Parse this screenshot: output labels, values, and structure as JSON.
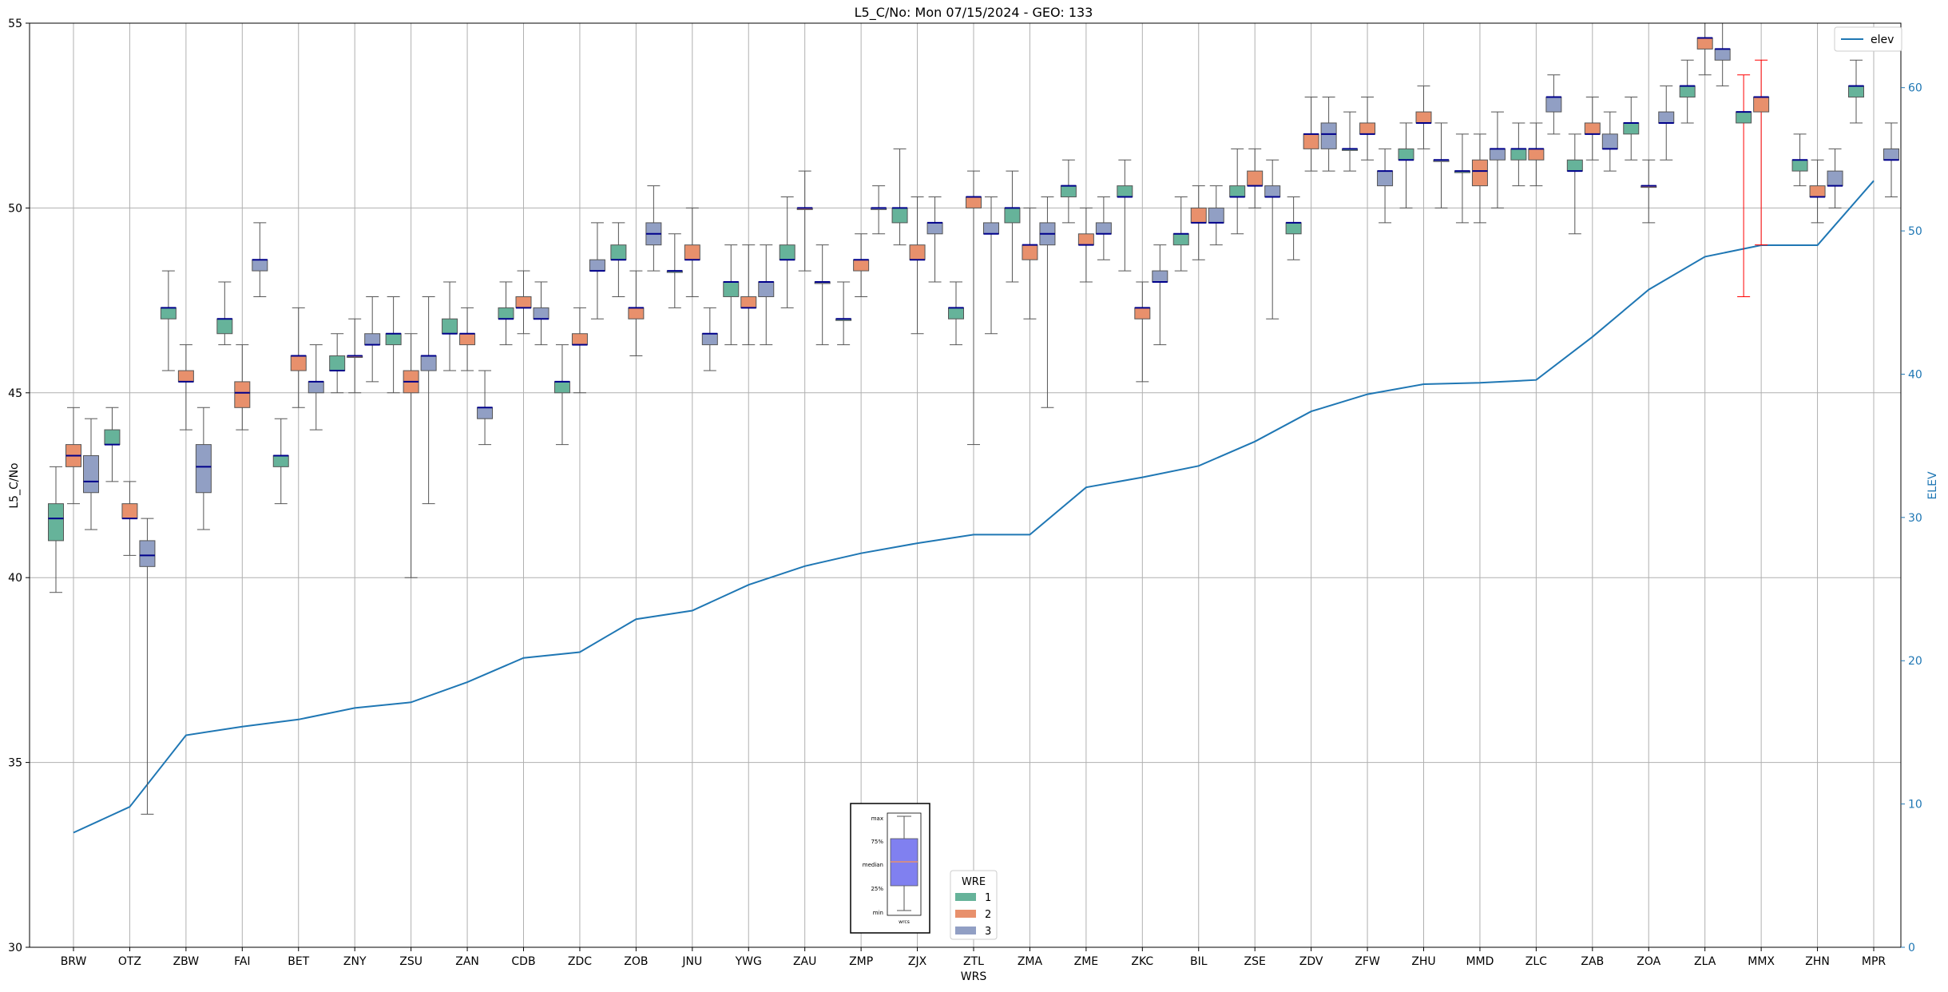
{
  "chart_data": {
    "type": "boxplot",
    "title": "L5_C/No: Mon 07/15/2024 - GEO: 133",
    "xlabel": "WRS",
    "ylabel": "L5_C/No",
    "y2label": "ELEV",
    "ylim": [
      30,
      55
    ],
    "y2lim": [
      0,
      64.5
    ],
    "yticks": [
      30,
      35,
      40,
      45,
      50,
      55
    ],
    "y2ticks": [
      0,
      10,
      20,
      30,
      40,
      50,
      60
    ],
    "grid": true,
    "categories": [
      "BRW",
      "OTZ",
      "ZBW",
      "FAI",
      "BET",
      "ZNY",
      "ZSU",
      "ZAN",
      "CDB",
      "ZDC",
      "ZOB",
      "JNU",
      "YWG",
      "ZAU",
      "ZMP",
      "ZJX",
      "ZTL",
      "ZMA",
      "ZME",
      "ZKC",
      "BIL",
      "ZSE",
      "ZDV",
      "ZFW",
      "ZHU",
      "MMD",
      "ZLC",
      "ZAB",
      "ZOA",
      "ZLA",
      "MMX",
      "ZHN",
      "MPR"
    ],
    "wre_colors": {
      "1": "#66b39a",
      "2": "#e8906c",
      "3": "#919fc4"
    },
    "median_color": "#00008b",
    "whisker_color": "#555555",
    "outlier_whisker_color": "#ff0000",
    "line_color": "#1f77b4",
    "legend_wre": {
      "title": "WRE",
      "entries": [
        "1",
        "2",
        "3"
      ],
      "position": "bottom-center"
    },
    "legend_elev": {
      "label": "elev",
      "position": "top-right"
    },
    "key_box": {
      "labels": [
        "max",
        "75%",
        "median",
        "25%",
        "min"
      ],
      "caption": "wrcs",
      "position": "bottom-center"
    },
    "boxes": [
      {
        "wrs": "BRW",
        "wre": 1,
        "min": 39.6,
        "q1": 41.0,
        "median": 41.6,
        "q3": 42.0,
        "max": 43.0
      },
      {
        "wrs": "BRW",
        "wre": 2,
        "min": 42.0,
        "q1": 43.0,
        "median": 43.3,
        "q3": 43.6,
        "max": 44.6
      },
      {
        "wrs": "BRW",
        "wre": 3,
        "min": 41.3,
        "q1": 42.3,
        "median": 42.6,
        "q3": 43.3,
        "max": 44.3
      },
      {
        "wrs": "OTZ",
        "wre": 1,
        "min": 42.6,
        "q1": 43.6,
        "median": 43.6,
        "q3": 44.0,
        "max": 44.6
      },
      {
        "wrs": "OTZ",
        "wre": 2,
        "min": 40.6,
        "q1": 41.6,
        "median": 41.6,
        "q3": 42.0,
        "max": 42.6
      },
      {
        "wrs": "OTZ",
        "wre": 3,
        "min": 33.6,
        "q1": 40.3,
        "median": 40.6,
        "q3": 41.0,
        "max": 41.6
      },
      {
        "wrs": "ZBW",
        "wre": 1,
        "min": 45.6,
        "q1": 47.0,
        "median": 47.3,
        "q3": 47.3,
        "max": 48.3
      },
      {
        "wrs": "ZBW",
        "wre": 2,
        "min": 44.0,
        "q1": 45.3,
        "median": 45.3,
        "q3": 45.6,
        "max": 46.3
      },
      {
        "wrs": "ZBW",
        "wre": 3,
        "min": 41.3,
        "q1": 42.3,
        "median": 43.0,
        "q3": 43.6,
        "max": 44.6
      },
      {
        "wrs": "FAI",
        "wre": 1,
        "min": 46.3,
        "q1": 46.6,
        "median": 47.0,
        "q3": 47.0,
        "max": 48.0
      },
      {
        "wrs": "FAI",
        "wre": 2,
        "min": 44.0,
        "q1": 44.6,
        "median": 45.0,
        "q3": 45.3,
        "max": 46.3
      },
      {
        "wrs": "FAI",
        "wre": 3,
        "min": 47.6,
        "q1": 48.3,
        "median": 48.6,
        "q3": 48.6,
        "max": 49.6
      },
      {
        "wrs": "BET",
        "wre": 1,
        "min": 42.0,
        "q1": 43.0,
        "median": 43.3,
        "q3": 43.3,
        "max": 44.3
      },
      {
        "wrs": "BET",
        "wre": 2,
        "min": 44.6,
        "q1": 45.6,
        "median": 46.0,
        "q3": 46.0,
        "max": 47.3
      },
      {
        "wrs": "BET",
        "wre": 3,
        "min": 44.0,
        "q1": 45.0,
        "median": 45.3,
        "q3": 45.3,
        "max": 46.3
      },
      {
        "wrs": "ZNY",
        "wre": 1,
        "min": 45.0,
        "q1": 45.6,
        "median": 45.6,
        "q3": 46.0,
        "max": 46.6
      },
      {
        "wrs": "ZNY",
        "wre": 2,
        "min": 45.0,
        "q1": 46.0,
        "median": 46.0,
        "q3": 46.0,
        "max": 47.0
      },
      {
        "wrs": "ZNY",
        "wre": 3,
        "min": 45.3,
        "q1": 46.3,
        "median": 46.3,
        "q3": 46.6,
        "max": 47.6
      },
      {
        "wrs": "ZSU",
        "wre": 1,
        "min": 45.0,
        "q1": 46.3,
        "median": 46.6,
        "q3": 46.6,
        "max": 47.6
      },
      {
        "wrs": "ZSU",
        "wre": 2,
        "min": 40.0,
        "q1": 45.0,
        "median": 45.3,
        "q3": 45.6,
        "max": 46.6
      },
      {
        "wrs": "ZSU",
        "wre": 3,
        "min": 42.0,
        "q1": 45.6,
        "median": 46.0,
        "q3": 46.0,
        "max": 47.6
      },
      {
        "wrs": "ZAN",
        "wre": 1,
        "min": 45.6,
        "q1": 46.6,
        "median": 46.6,
        "q3": 47.0,
        "max": 48.0
      },
      {
        "wrs": "ZAN",
        "wre": 2,
        "min": 45.6,
        "q1": 46.3,
        "median": 46.6,
        "q3": 46.6,
        "max": 47.3
      },
      {
        "wrs": "ZAN",
        "wre": 3,
        "min": 43.6,
        "q1": 44.3,
        "median": 44.6,
        "q3": 44.6,
        "max": 45.6
      },
      {
        "wrs": "CDB",
        "wre": 1,
        "min": 46.3,
        "q1": 47.0,
        "median": 47.0,
        "q3": 47.3,
        "max": 48.0
      },
      {
        "wrs": "CDB",
        "wre": 2,
        "min": 46.6,
        "q1": 47.3,
        "median": 47.3,
        "q3": 47.6,
        "max": 48.3
      },
      {
        "wrs": "CDB",
        "wre": 3,
        "min": 46.3,
        "q1": 47.0,
        "median": 47.0,
        "q3": 47.3,
        "max": 48.0
      },
      {
        "wrs": "ZDC",
        "wre": 1,
        "min": 43.6,
        "q1": 45.0,
        "median": 45.3,
        "q3": 45.3,
        "max": 46.3
      },
      {
        "wrs": "ZDC",
        "wre": 2,
        "min": 45.0,
        "q1": 46.3,
        "median": 46.3,
        "q3": 46.6,
        "max": 47.3
      },
      {
        "wrs": "ZDC",
        "wre": 3,
        "min": 47.0,
        "q1": 48.3,
        "median": 48.3,
        "q3": 48.6,
        "max": 49.6
      },
      {
        "wrs": "ZOB",
        "wre": 1,
        "min": 47.6,
        "q1": 48.6,
        "median": 48.6,
        "q3": 49.0,
        "max": 49.6
      },
      {
        "wrs": "ZOB",
        "wre": 2,
        "min": 46.0,
        "q1": 47.0,
        "median": 47.3,
        "q3": 47.3,
        "max": 48.3
      },
      {
        "wrs": "ZOB",
        "wre": 3,
        "min": 48.3,
        "q1": 49.0,
        "median": 49.3,
        "q3": 49.6,
        "max": 50.6
      },
      {
        "wrs": "JNU",
        "wre": 1,
        "min": 47.3,
        "q1": 48.3,
        "median": 48.3,
        "q3": 48.3,
        "max": 49.3
      },
      {
        "wrs": "JNU",
        "wre": 2,
        "min": 47.6,
        "q1": 48.6,
        "median": 48.6,
        "q3": 49.0,
        "max": 50.0
      },
      {
        "wrs": "JNU",
        "wre": 3,
        "min": 45.6,
        "q1": 46.3,
        "median": 46.6,
        "q3": 46.6,
        "max": 47.3
      },
      {
        "wrs": "YWG",
        "wre": 1,
        "min": 46.3,
        "q1": 47.6,
        "median": 48.0,
        "q3": 48.0,
        "max": 49.0
      },
      {
        "wrs": "YWG",
        "wre": 2,
        "min": 46.3,
        "q1": 47.3,
        "median": 47.3,
        "q3": 47.6,
        "max": 49.0
      },
      {
        "wrs": "YWG",
        "wre": 3,
        "min": 46.3,
        "q1": 47.6,
        "median": 48.0,
        "q3": 48.0,
        "max": 49.0
      },
      {
        "wrs": "ZAU",
        "wre": 1,
        "min": 47.3,
        "q1": 48.6,
        "median": 48.6,
        "q3": 49.0,
        "max": 50.3
      },
      {
        "wrs": "ZAU",
        "wre": 2,
        "min": 48.3,
        "q1": 50.0,
        "median": 50.0,
        "q3": 50.0,
        "max": 51.0
      },
      {
        "wrs": "ZAU",
        "wre": 3,
        "min": 46.3,
        "q1": 48.0,
        "median": 48.0,
        "q3": 48.0,
        "max": 49.0
      },
      {
        "wrs": "ZMP",
        "wre": 1,
        "min": 46.3,
        "q1": 47.0,
        "median": 47.0,
        "q3": 47.0,
        "max": 48.0
      },
      {
        "wrs": "ZMP",
        "wre": 2,
        "min": 47.6,
        "q1": 48.3,
        "median": 48.6,
        "q3": 48.6,
        "max": 49.3
      },
      {
        "wrs": "ZMP",
        "wre": 3,
        "min": 49.3,
        "q1": 50.0,
        "median": 50.0,
        "q3": 50.0,
        "max": 50.6
      },
      {
        "wrs": "ZJX",
        "wre": 1,
        "min": 49.0,
        "q1": 49.6,
        "median": 50.0,
        "q3": 50.0,
        "max": 51.6
      },
      {
        "wrs": "ZJX",
        "wre": 2,
        "min": 46.6,
        "q1": 48.6,
        "median": 48.6,
        "q3": 49.0,
        "max": 50.3
      },
      {
        "wrs": "ZJX",
        "wre": 3,
        "min": 48.0,
        "q1": 49.3,
        "median": 49.6,
        "q3": 49.6,
        "max": 50.3
      },
      {
        "wrs": "ZTL",
        "wre": 1,
        "min": 46.3,
        "q1": 47.0,
        "median": 47.3,
        "q3": 47.3,
        "max": 48.0
      },
      {
        "wrs": "ZTL",
        "wre": 2,
        "min": 43.6,
        "q1": 50.0,
        "median": 50.3,
        "q3": 50.3,
        "max": 51.0
      },
      {
        "wrs": "ZTL",
        "wre": 3,
        "min": 46.6,
        "q1": 49.3,
        "median": 49.3,
        "q3": 49.6,
        "max": 50.3
      },
      {
        "wrs": "ZMA",
        "wre": 1,
        "min": 48.0,
        "q1": 49.6,
        "median": 50.0,
        "q3": 50.0,
        "max": 51.0
      },
      {
        "wrs": "ZMA",
        "wre": 2,
        "min": 47.0,
        "q1": 48.6,
        "median": 49.0,
        "q3": 49.0,
        "max": 50.0
      },
      {
        "wrs": "ZMA",
        "wre": 3,
        "min": 44.6,
        "q1": 49.0,
        "median": 49.3,
        "q3": 49.6,
        "max": 50.3
      },
      {
        "wrs": "ZME",
        "wre": 1,
        "min": 49.6,
        "q1": 50.3,
        "median": 50.6,
        "q3": 50.6,
        "max": 51.3
      },
      {
        "wrs": "ZME",
        "wre": 2,
        "min": 48.0,
        "q1": 49.0,
        "median": 49.0,
        "q3": 49.3,
        "max": 50.0
      },
      {
        "wrs": "ZME",
        "wre": 3,
        "min": 48.6,
        "q1": 49.3,
        "median": 49.3,
        "q3": 49.6,
        "max": 50.3
      },
      {
        "wrs": "ZKC",
        "wre": 1,
        "min": 48.3,
        "q1": 50.3,
        "median": 50.3,
        "q3": 50.6,
        "max": 51.3
      },
      {
        "wrs": "ZKC",
        "wre": 2,
        "min": 45.3,
        "q1": 47.0,
        "median": 47.3,
        "q3": 47.3,
        "max": 48.0
      },
      {
        "wrs": "ZKC",
        "wre": 3,
        "min": 46.3,
        "q1": 48.0,
        "median": 48.0,
        "q3": 48.3,
        "max": 49.0
      },
      {
        "wrs": "BIL",
        "wre": 1,
        "min": 48.3,
        "q1": 49.0,
        "median": 49.3,
        "q3": 49.3,
        "max": 50.3
      },
      {
        "wrs": "BIL",
        "wre": 2,
        "min": 48.6,
        "q1": 49.6,
        "median": 49.6,
        "q3": 50.0,
        "max": 50.6
      },
      {
        "wrs": "BIL",
        "wre": 3,
        "min": 49.0,
        "q1": 49.6,
        "median": 49.6,
        "q3": 50.0,
        "max": 50.6
      },
      {
        "wrs": "ZSE",
        "wre": 1,
        "min": 49.3,
        "q1": 50.3,
        "median": 50.3,
        "q3": 50.6,
        "max": 51.6
      },
      {
        "wrs": "ZSE",
        "wre": 2,
        "min": 50.0,
        "q1": 50.6,
        "median": 50.6,
        "q3": 51.0,
        "max": 51.6
      },
      {
        "wrs": "ZSE",
        "wre": 3,
        "min": 47.0,
        "q1": 50.3,
        "median": 50.3,
        "q3": 50.6,
        "max": 51.3
      },
      {
        "wrs": "ZDV",
        "wre": 1,
        "min": 48.6,
        "q1": 49.3,
        "median": 49.6,
        "q3": 49.6,
        "max": 50.3
      },
      {
        "wrs": "ZDV",
        "wre": 2,
        "min": 51.0,
        "q1": 51.6,
        "median": 52.0,
        "q3": 52.0,
        "max": 53.0
      },
      {
        "wrs": "ZDV",
        "wre": 3,
        "min": 51.0,
        "q1": 51.6,
        "median": 52.0,
        "q3": 52.3,
        "max": 53.0
      },
      {
        "wrs": "ZFW",
        "wre": 1,
        "min": 51.0,
        "q1": 51.6,
        "median": 51.6,
        "q3": 51.6,
        "max": 52.6
      },
      {
        "wrs": "ZFW",
        "wre": 2,
        "min": 51.3,
        "q1": 52.0,
        "median": 52.0,
        "q3": 52.3,
        "max": 53.0
      },
      {
        "wrs": "ZFW",
        "wre": 3,
        "min": 49.6,
        "q1": 50.6,
        "median": 51.0,
        "q3": 51.0,
        "max": 51.6
      },
      {
        "wrs": "ZHU",
        "wre": 1,
        "min": 50.0,
        "q1": 51.3,
        "median": 51.3,
        "q3": 51.6,
        "max": 52.3
      },
      {
        "wrs": "ZHU",
        "wre": 2,
        "min": 51.6,
        "q1": 52.3,
        "median": 52.3,
        "q3": 52.6,
        "max": 53.3
      },
      {
        "wrs": "ZHU",
        "wre": 3,
        "min": 50.0,
        "q1": 51.3,
        "median": 51.3,
        "q3": 51.3,
        "max": 52.3
      },
      {
        "wrs": "MMD",
        "wre": 1,
        "min": 49.6,
        "q1": 51.0,
        "median": 51.0,
        "q3": 51.0,
        "max": 52.0
      },
      {
        "wrs": "MMD",
        "wre": 2,
        "min": 49.6,
        "q1": 50.6,
        "median": 51.0,
        "q3": 51.3,
        "max": 52.0
      },
      {
        "wrs": "MMD",
        "wre": 3,
        "min": 50.0,
        "q1": 51.3,
        "median": 51.6,
        "q3": 51.6,
        "max": 52.6
      },
      {
        "wrs": "ZLC",
        "wre": 1,
        "min": 50.6,
        "q1": 51.3,
        "median": 51.6,
        "q3": 51.6,
        "max": 52.3
      },
      {
        "wrs": "ZLC",
        "wre": 2,
        "min": 50.6,
        "q1": 51.3,
        "median": 51.6,
        "q3": 51.6,
        "max": 52.3
      },
      {
        "wrs": "ZLC",
        "wre": 3,
        "min": 52.0,
        "q1": 52.6,
        "median": 53.0,
        "q3": 53.0,
        "max": 53.6
      },
      {
        "wrs": "ZAB",
        "wre": 1,
        "min": 49.3,
        "q1": 51.0,
        "median": 51.0,
        "q3": 51.3,
        "max": 52.0
      },
      {
        "wrs": "ZAB",
        "wre": 2,
        "min": 51.3,
        "q1": 52.0,
        "median": 52.0,
        "q3": 52.3,
        "max": 53.0
      },
      {
        "wrs": "ZAB",
        "wre": 3,
        "min": 51.0,
        "q1": 51.6,
        "median": 51.6,
        "q3": 52.0,
        "max": 52.6
      },
      {
        "wrs": "ZOA",
        "wre": 1,
        "min": 51.3,
        "q1": 52.0,
        "median": 52.3,
        "q3": 52.3,
        "max": 53.0
      },
      {
        "wrs": "ZOA",
        "wre": 2,
        "min": 49.6,
        "q1": 50.6,
        "median": 50.6,
        "q3": 50.6,
        "max": 51.3
      },
      {
        "wrs": "ZOA",
        "wre": 3,
        "min": 51.3,
        "q1": 52.3,
        "median": 52.3,
        "q3": 52.6,
        "max": 53.3
      },
      {
        "wrs": "ZLA",
        "wre": 1,
        "min": 52.3,
        "q1": 53.0,
        "median": 53.3,
        "q3": 53.3,
        "max": 54.0
      },
      {
        "wrs": "ZLA",
        "wre": 2,
        "min": 53.6,
        "q1": 54.3,
        "median": 54.6,
        "q3": 54.6,
        "max": 55.0
      },
      {
        "wrs": "ZLA",
        "wre": 3,
        "min": 53.3,
        "q1": 54.0,
        "median": 54.3,
        "q3": 54.3,
        "max": 55.0
      },
      {
        "wrs": "MMX",
        "wre": 1,
        "min": 47.6,
        "q1": 52.3,
        "median": 52.6,
        "q3": 52.6,
        "max": 53.6,
        "red": true
      },
      {
        "wrs": "MMX",
        "wre": 2,
        "min": 49.0,
        "q1": 52.6,
        "median": 53.0,
        "q3": 53.0,
        "max": 54.0,
        "red": true
      },
      {
        "wrs": "ZHN",
        "wre": 1,
        "min": 50.6,
        "q1": 51.0,
        "median": 51.3,
        "q3": 51.3,
        "max": 52.0
      },
      {
        "wrs": "ZHN",
        "wre": 2,
        "min": 49.6,
        "q1": 50.3,
        "median": 50.3,
        "q3": 50.6,
        "max": 51.3
      },
      {
        "wrs": "ZHN",
        "wre": 3,
        "min": 50.0,
        "q1": 50.6,
        "median": 50.6,
        "q3": 51.0,
        "max": 51.6
      },
      {
        "wrs": "MPR",
        "wre": 1,
        "min": 52.3,
        "q1": 53.0,
        "median": 53.3,
        "q3": 53.3,
        "max": 54.0
      },
      {
        "wrs": "MPR",
        "wre": 3,
        "min": 50.3,
        "q1": 51.3,
        "median": 51.3,
        "q3": 51.6,
        "max": 52.3
      }
    ],
    "elev": [
      8.0,
      9.8,
      14.8,
      15.4,
      15.9,
      16.7,
      17.1,
      18.5,
      20.2,
      20.6,
      22.9,
      23.5,
      25.3,
      26.6,
      27.5,
      28.2,
      28.8,
      28.8,
      32.1,
      32.8,
      33.6,
      35.3,
      37.4,
      38.6,
      39.3,
      39.4,
      39.6,
      42.6,
      45.9,
      48.2,
      49.0,
      49.0,
      53.5
    ]
  }
}
